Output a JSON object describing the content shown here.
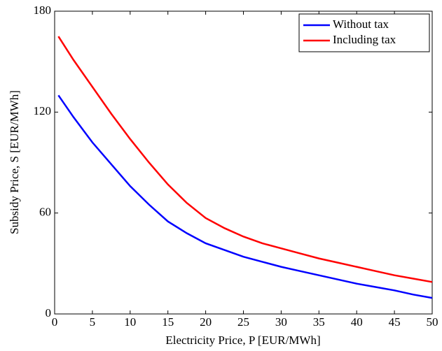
{
  "chart_data": {
    "type": "line",
    "xlabel": "Electricity Price, P [EUR/MWh]",
    "ylabel": "Subsidy Price, S [EUR/MWh]",
    "x": [
      0.5,
      2.5,
      5,
      7.5,
      10,
      12.5,
      15,
      17.5,
      20,
      22.5,
      25,
      27.5,
      30,
      32.5,
      35,
      37.5,
      40,
      42.5,
      45,
      47.5,
      50
    ],
    "series": [
      {
        "name": "Without tax",
        "color": "#0000ff",
        "values": [
          130,
          117,
          102,
          89,
          76,
          65,
          55,
          48,
          42,
          38,
          34,
          31,
          28,
          25.5,
          23,
          20.5,
          18,
          16,
          14,
          11.5,
          9.5
        ]
      },
      {
        "name": "Including tax",
        "color": "#ff0000",
        "values": [
          165,
          151,
          135,
          119,
          104,
          90,
          77,
          66,
          57,
          51,
          46,
          42,
          39,
          36,
          33,
          30.5,
          28,
          25.5,
          23,
          21,
          19
        ]
      }
    ],
    "xlim": [
      0,
      50
    ],
    "xticks": [
      0,
      5,
      10,
      15,
      20,
      25,
      30,
      35,
      40,
      45,
      50
    ],
    "ylim": [
      0,
      180
    ],
    "yticks": [
      0,
      60,
      120,
      180
    ],
    "legend": "northeast"
  }
}
